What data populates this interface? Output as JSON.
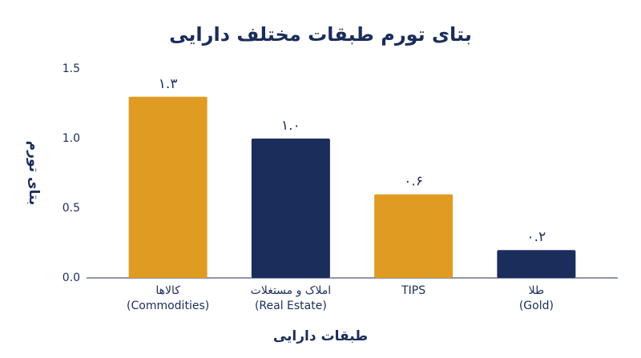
{
  "chart_data": {
    "type": "bar",
    "title": "بتای تورم طبقات مختلف دارایی",
    "x_label": "طبقات دارایی",
    "y_label": "بتای تورم",
    "categories": [
      [
        "کالاها",
        "(Commodities)"
      ],
      [
        "املاک و مستغلات",
        "(Real Estate)"
      ],
      [
        "TIPS"
      ],
      [
        "طلا",
        "(Gold)"
      ]
    ],
    "values": [
      1.3,
      1.0,
      0.6,
      0.2
    ],
    "value_labels": [
      "۱.۳",
      "۱.۰",
      "۰.۶",
      "۰.۲"
    ],
    "colors": [
      "#e09c22",
      "#1b2d5b",
      "#e09c22",
      "#1b2d5b"
    ],
    "ylim": [
      0,
      1.5
    ],
    "yticks": [
      {
        "value": 0,
        "label": "0.0"
      },
      {
        "value": 0.5,
        "label": "0.5"
      },
      {
        "value": 1,
        "label": "1.0"
      },
      {
        "value": 1.5,
        "label": "1.5"
      }
    ],
    "grid": false
  }
}
